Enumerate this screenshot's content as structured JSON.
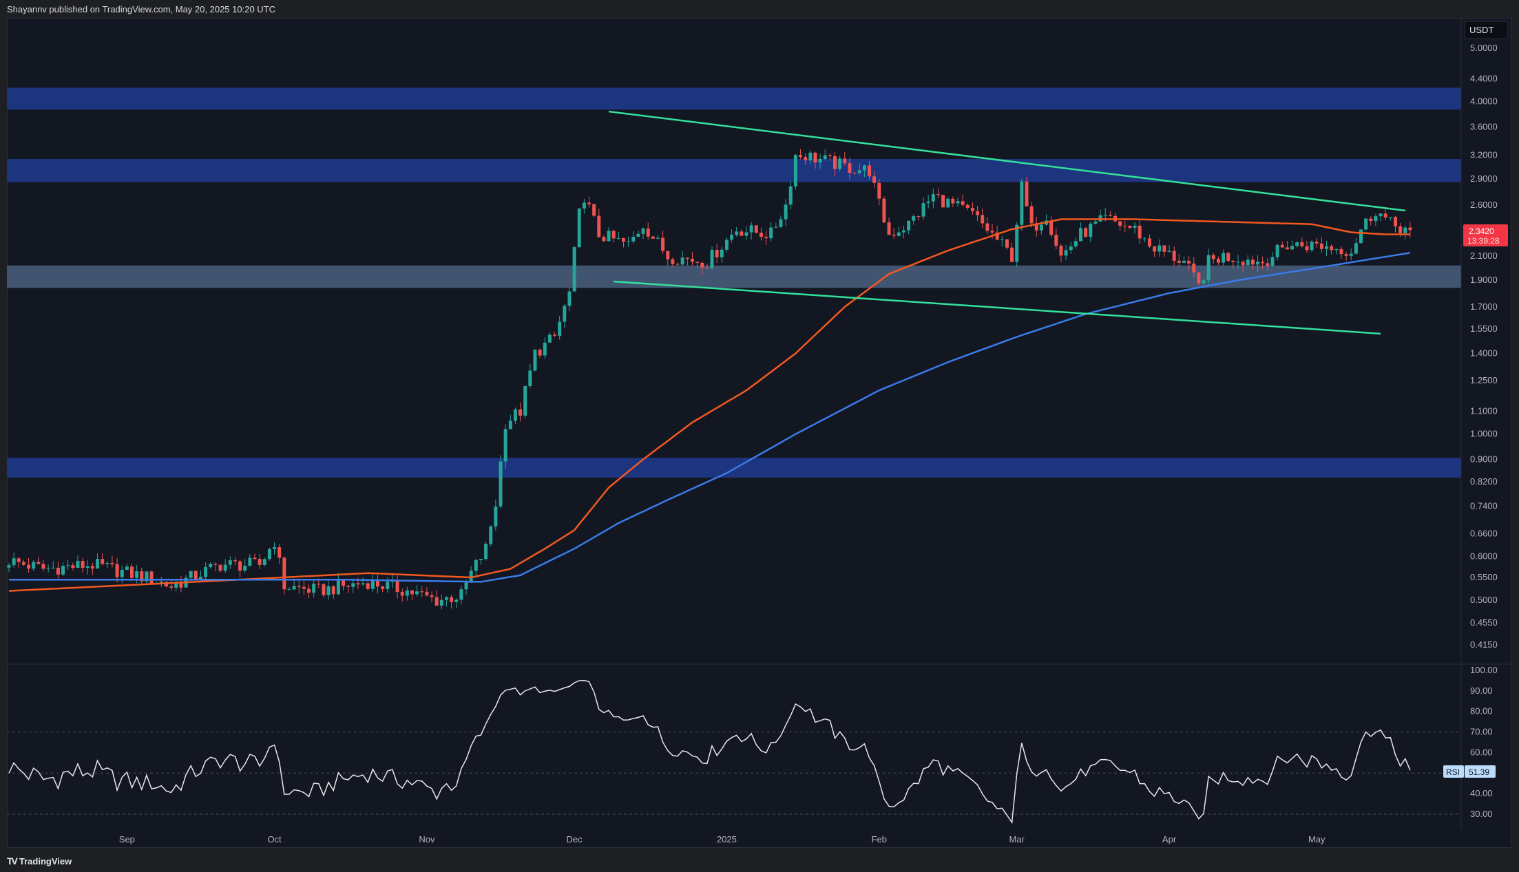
{
  "header": {
    "attribution": "Shayannv published on TradingView.com, May 20, 2025 10:20 UTC"
  },
  "footer": {
    "logo_text": "TradingView",
    "logo_mark": "17"
  },
  "price_axis": {
    "currency": "USDT",
    "ticks": [
      "5.0000",
      "4.4000",
      "4.0000",
      "3.6000",
      "3.2000",
      "2.9000",
      "2.6000",
      "2.1000",
      "1.9000",
      "1.7000",
      "1.5500",
      "1.4000",
      "1.2500",
      "1.1000",
      "1.0000",
      "0.9000",
      "0.8200",
      "0.7400",
      "0.6600",
      "0.6000",
      "0.5500",
      "0.5000",
      "0.4550",
      "0.4150"
    ],
    "last_price": "2.3420",
    "countdown": "13:39:28",
    "scale": "log"
  },
  "rsi_axis": {
    "ticks": [
      "100.00",
      "90.00",
      "80.00",
      "70.00",
      "60.00",
      "40.00",
      "30.00"
    ],
    "label": "RSI",
    "value": "51.39"
  },
  "time_axis": {
    "labels": [
      {
        "text": "Sep",
        "date": "2024-09-01"
      },
      {
        "text": "Oct",
        "date": "2024-10-01"
      },
      {
        "text": "Nov",
        "date": "2024-11-01"
      },
      {
        "text": "Dec",
        "date": "2024-12-01"
      },
      {
        "text": "2025",
        "date": "2025-01-01"
      },
      {
        "text": "Feb",
        "date": "2025-02-01"
      },
      {
        "text": "Mar",
        "date": "2025-03-01"
      },
      {
        "text": "Apr",
        "date": "2025-04-01"
      },
      {
        "text": "May",
        "date": "2025-05-01"
      }
    ]
  },
  "colors": {
    "background": "#131722",
    "up": "#26a69a",
    "down": "#ef5350",
    "ma_orange": "#f4591f",
    "ma_blue": "#3b7bea",
    "trendline": "#33e29a",
    "zone_blue": "#1d347f",
    "zone_grey": "#415470",
    "price_label": "#f23645",
    "rsi_line": "#e8e8ea"
  },
  "chart_data": {
    "type": "candlestick",
    "interval": "1D",
    "date_range": [
      "2024-08-08",
      "2025-05-20"
    ],
    "close_keypoints": [
      [
        "2024-08-08",
        0.59
      ],
      [
        "2024-08-15",
        0.57
      ],
      [
        "2024-08-25",
        0.58
      ],
      [
        "2024-09-05",
        0.55
      ],
      [
        "2024-09-10",
        0.53
      ],
      [
        "2024-09-20",
        0.58
      ],
      [
        "2024-09-28",
        0.58
      ],
      [
        "2024-10-01",
        0.64
      ],
      [
        "2024-10-03",
        0.53
      ],
      [
        "2024-10-10",
        0.52
      ],
      [
        "2024-10-20",
        0.54
      ],
      [
        "2024-10-28",
        0.52
      ],
      [
        "2024-11-03",
        0.5
      ],
      [
        "2024-11-08",
        0.51
      ],
      [
        "2024-11-10",
        0.56
      ],
      [
        "2024-11-13",
        0.62
      ],
      [
        "2024-11-15",
        0.75
      ],
      [
        "2024-11-17",
        1.05
      ],
      [
        "2024-11-20",
        1.1
      ],
      [
        "2024-11-23",
        1.4
      ],
      [
        "2024-11-27",
        1.5
      ],
      [
        "2024-11-30",
        1.8
      ],
      [
        "2024-12-02",
        2.5
      ],
      [
        "2024-12-03",
        2.7
      ],
      [
        "2024-12-06",
        2.3
      ],
      [
        "2024-12-12",
        2.2
      ],
      [
        "2024-12-15",
        2.4
      ],
      [
        "2024-12-20",
        2.1
      ],
      [
        "2024-12-28",
        2.05
      ],
      [
        "2025-01-03",
        2.35
      ],
      [
        "2025-01-10",
        2.3
      ],
      [
        "2025-01-13",
        2.6
      ],
      [
        "2025-01-15",
        3.2
      ],
      [
        "2025-01-17",
        3.2
      ],
      [
        "2025-01-25",
        3.05
      ],
      [
        "2025-01-30",
        3.0
      ],
      [
        "2025-02-01",
        2.6
      ],
      [
        "2025-02-03",
        2.3
      ],
      [
        "2025-02-07",
        2.4
      ],
      [
        "2025-02-12",
        2.7
      ],
      [
        "2025-02-20",
        2.5
      ],
      [
        "2025-02-24",
        2.3
      ],
      [
        "2025-02-28",
        2.1
      ],
      [
        "2025-03-02",
        2.8
      ],
      [
        "2025-03-04",
        2.35
      ],
      [
        "2025-03-07",
        2.5
      ],
      [
        "2025-03-10",
        2.1
      ],
      [
        "2025-03-14",
        2.3
      ],
      [
        "2025-03-19",
        2.45
      ],
      [
        "2025-03-25",
        2.35
      ],
      [
        "2025-03-28",
        2.2
      ],
      [
        "2025-04-04",
        2.05
      ],
      [
        "2025-04-07",
        1.85
      ],
      [
        "2025-04-09",
        2.05
      ],
      [
        "2025-04-12",
        2.1
      ],
      [
        "2025-04-20",
        2.05
      ],
      [
        "2025-04-25",
        2.2
      ],
      [
        "2025-05-01",
        2.2
      ],
      [
        "2025-05-08",
        2.15
      ],
      [
        "2025-05-10",
        2.35
      ],
      [
        "2025-05-13",
        2.55
      ],
      [
        "2025-05-16",
        2.4
      ],
      [
        "2025-05-20",
        2.342
      ]
    ],
    "moving_averages": [
      {
        "color": "#f4591f",
        "points": [
          [
            "2024-08-08",
            0.52
          ],
          [
            "2024-09-15",
            0.54
          ],
          [
            "2024-10-20",
            0.56
          ],
          [
            "2024-11-10",
            0.55
          ],
          [
            "2024-11-18",
            0.57
          ],
          [
            "2024-11-25",
            0.62
          ],
          [
            "2024-12-01",
            0.67
          ],
          [
            "2024-12-08",
            0.8
          ],
          [
            "2024-12-15",
            0.9
          ],
          [
            "2024-12-25",
            1.05
          ],
          [
            "2025-01-05",
            1.2
          ],
          [
            "2025-01-15",
            1.4
          ],
          [
            "2025-01-25",
            1.7
          ],
          [
            "2025-02-03",
            1.95
          ],
          [
            "2025-02-15",
            2.15
          ],
          [
            "2025-02-28",
            2.35
          ],
          [
            "2025-03-10",
            2.45
          ],
          [
            "2025-03-25",
            2.45
          ],
          [
            "2025-04-15",
            2.42
          ],
          [
            "2025-04-30",
            2.4
          ],
          [
            "2025-05-08",
            2.32
          ],
          [
            "2025-05-15",
            2.3
          ],
          [
            "2025-05-20",
            2.3
          ]
        ]
      },
      {
        "color": "#3b7bea",
        "points": [
          [
            "2024-08-08",
            0.545
          ],
          [
            "2024-10-15",
            0.545
          ],
          [
            "2024-11-12",
            0.54
          ],
          [
            "2024-11-20",
            0.555
          ],
          [
            "2024-12-01",
            0.62
          ],
          [
            "2024-12-10",
            0.69
          ],
          [
            "2024-12-20",
            0.76
          ],
          [
            "2025-01-01",
            0.85
          ],
          [
            "2025-01-15",
            1.0
          ],
          [
            "2025-02-01",
            1.2
          ],
          [
            "2025-02-15",
            1.35
          ],
          [
            "2025-03-01",
            1.5
          ],
          [
            "2025-03-15",
            1.65
          ],
          [
            "2025-04-01",
            1.8
          ],
          [
            "2025-04-15",
            1.9
          ],
          [
            "2025-05-01",
            2.0
          ],
          [
            "2025-05-20",
            2.13
          ]
        ]
      }
    ],
    "trendlines": [
      {
        "from": [
          "2024-12-08",
          3.84
        ],
        "to": [
          "2025-05-19",
          2.54
        ]
      },
      {
        "from": [
          "2024-12-09",
          1.89
        ],
        "to": [
          "2025-05-14",
          1.52
        ]
      }
    ],
    "zones": [
      {
        "low": 3.87,
        "high": 4.24,
        "color": "#1d347f"
      },
      {
        "low": 2.86,
        "high": 3.15,
        "color": "#1d347f"
      },
      {
        "low": 1.84,
        "high": 2.02,
        "color": "#415470"
      },
      {
        "low": 0.834,
        "high": 0.906,
        "color": "#1d347f"
      }
    ],
    "ylim": [
      0.4,
      5.4
    ],
    "rsi": {
      "period": 14,
      "levels": [
        70,
        50,
        30
      ],
      "ylim": [
        25,
        100
      ],
      "last": 51.39
    }
  }
}
